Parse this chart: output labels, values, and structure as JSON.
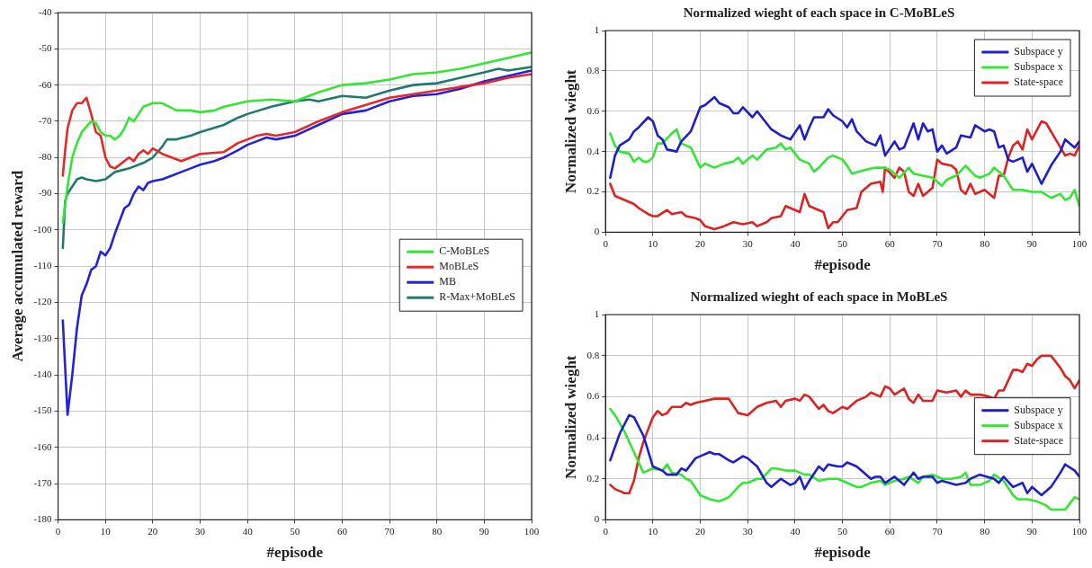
{
  "chart_data": [
    {
      "type": "line",
      "xlabel": "#episode",
      "ylabel": "Average accumulated reward",
      "xlim": [
        0,
        100
      ],
      "xticks": [
        0,
        10,
        20,
        30,
        40,
        50,
        60,
        70,
        80,
        90,
        100
      ],
      "ylim": [
        -180,
        -40
      ],
      "yticks": [
        -180,
        -170,
        -160,
        -150,
        -140,
        -130,
        -120,
        -110,
        -100,
        -90,
        -80,
        -70,
        -60,
        -50,
        -40
      ],
      "grid": true,
      "legend": "right",
      "line_style": "solid",
      "marker": "none",
      "series": [
        {
          "name": "C-MoBLeS",
          "color": "#33e633",
          "x": [
            1,
            2,
            3,
            4,
            5,
            7,
            8,
            9,
            10,
            11,
            12,
            13,
            14,
            15,
            16,
            17,
            18,
            20,
            22,
            25,
            28,
            30,
            33,
            35,
            40,
            45,
            50,
            55,
            60,
            65,
            70,
            75,
            80,
            85,
            90,
            95,
            100
          ],
          "values": [
            -98,
            -88,
            -80,
            -76,
            -73,
            -70,
            -70.5,
            -73,
            -74,
            -74,
            -75,
            -74,
            -72,
            -69,
            -70,
            -68,
            -66,
            -65,
            -65,
            -67,
            -67,
            -67.5,
            -67,
            -66,
            -64.5,
            -64,
            -64.5,
            -62,
            -60,
            -59.5,
            -58.5,
            -57,
            -56.5,
            -55.5,
            -54,
            -52.5,
            -51
          ]
        },
        {
          "name": "MoBLeS",
          "color": "#e62828",
          "x": [
            1,
            1.5,
            2,
            3,
            4,
            5,
            6,
            7,
            8,
            9,
            10,
            11,
            12,
            14,
            15,
            16,
            17,
            18,
            19,
            20,
            22,
            24,
            26,
            28,
            30,
            35,
            38,
            40,
            42,
            44,
            46,
            50,
            55,
            60,
            65,
            70,
            75,
            80,
            85,
            90,
            95,
            100
          ],
          "values": [
            -85,
            -78,
            -72,
            -67,
            -65,
            -65,
            -63.5,
            -68,
            -73,
            -74,
            -80,
            -82.5,
            -83,
            -81,
            -80,
            -81,
            -79,
            -78,
            -79,
            -77.5,
            -79,
            -80,
            -81,
            -80,
            -79,
            -78.5,
            -76,
            -75,
            -74,
            -73.5,
            -74,
            -73,
            -70,
            -67.5,
            -65.5,
            -63.5,
            -62.5,
            -61.5,
            -60.5,
            -59.5,
            -58,
            -57
          ]
        },
        {
          "name": "MB",
          "color": "#2222dd",
          "x": [
            1,
            2,
            3,
            4,
            5,
            6,
            7,
            8,
            9,
            10,
            11,
            12,
            14,
            15,
            16,
            17,
            18,
            19,
            20,
            22,
            24,
            26,
            28,
            30,
            33,
            35,
            38,
            40,
            42,
            44,
            46,
            50,
            55,
            60,
            65,
            70,
            75,
            80,
            85,
            90,
            95,
            100
          ],
          "values": [
            -125,
            -151,
            -140,
            -127,
            -118,
            -115,
            -111,
            -110,
            -106,
            -107,
            -105,
            -101,
            -94,
            -93,
            -90,
            -88,
            -89,
            -87,
            -86.5,
            -86,
            -85,
            -84,
            -83,
            -82,
            -81,
            -80,
            -78,
            -76.5,
            -75.5,
            -74.5,
            -75,
            -74,
            -71,
            -68,
            -67,
            -64.5,
            -63,
            -62.5,
            -61,
            -59,
            -57.5,
            -56
          ]
        },
        {
          "name": "R-Max+MoBLeS",
          "color": "#1e7a6e",
          "x": [
            1,
            1.5,
            2,
            3,
            4,
            5,
            6,
            8,
            10,
            12,
            15,
            18,
            20,
            22,
            23,
            25,
            28,
            30,
            35,
            38,
            40,
            45,
            50,
            53,
            55,
            60,
            65,
            70,
            75,
            80,
            85,
            90,
            93,
            95,
            100
          ],
          "values": [
            -105,
            -92,
            -90,
            -88,
            -86,
            -85.5,
            -86,
            -86.5,
            -86,
            -84,
            -83,
            -81.5,
            -80,
            -77,
            -75,
            -75,
            -74,
            -73,
            -71,
            -69,
            -68,
            -66,
            -64.5,
            -64,
            -64.5,
            -63,
            -63.5,
            -61.5,
            -60,
            -59.5,
            -58,
            -56.5,
            -55.5,
            -56,
            -55
          ]
        }
      ]
    },
    {
      "type": "line",
      "title": "Normalized wieght of each space in C-MoBLeS",
      "xlabel": "#episode",
      "ylabel": "Normalized wieght",
      "xlim": [
        0,
        100
      ],
      "xticks": [
        0,
        10,
        20,
        30,
        40,
        50,
        60,
        70,
        80,
        90,
        100
      ],
      "ylim": [
        0,
        1
      ],
      "yticks": [
        0,
        0.2,
        0.4,
        0.6,
        0.8,
        1
      ],
      "grid": true,
      "legend": "top right",
      "line_style": "solid",
      "marker": "none",
      "series": [
        {
          "name": "Subspace y",
          "color": "#1f1fc8",
          "x": [
            1,
            2,
            3,
            5,
            6,
            7,
            9,
            10,
            11,
            12,
            13,
            15,
            16,
            18,
            20,
            21,
            23,
            24,
            26,
            27,
            28,
            29,
            31,
            32,
            35,
            37,
            39,
            41,
            42,
            43,
            44,
            46,
            47,
            48,
            50,
            51,
            52,
            53,
            55,
            57,
            58,
            59,
            61,
            62,
            63,
            65,
            66,
            67,
            68,
            69,
            70,
            71,
            72,
            74,
            75,
            77,
            78,
            80,
            81,
            82,
            83,
            84,
            85,
            86,
            88,
            89,
            90,
            92,
            94,
            96,
            97,
            98,
            99,
            100
          ],
          "values": [
            0.27,
            0.38,
            0.43,
            0.46,
            0.5,
            0.52,
            0.57,
            0.55,
            0.48,
            0.46,
            0.41,
            0.4,
            0.45,
            0.5,
            0.62,
            0.63,
            0.67,
            0.64,
            0.62,
            0.59,
            0.59,
            0.62,
            0.57,
            0.6,
            0.51,
            0.48,
            0.46,
            0.53,
            0.46,
            0.52,
            0.57,
            0.57,
            0.61,
            0.58,
            0.55,
            0.52,
            0.56,
            0.5,
            0.45,
            0.43,
            0.48,
            0.38,
            0.45,
            0.41,
            0.42,
            0.54,
            0.46,
            0.54,
            0.5,
            0.51,
            0.4,
            0.43,
            0.39,
            0.42,
            0.48,
            0.47,
            0.53,
            0.5,
            0.51,
            0.5,
            0.42,
            0.43,
            0.36,
            0.35,
            0.37,
            0.3,
            0.34,
            0.24,
            0.33,
            0.4,
            0.46,
            0.44,
            0.42,
            0.45
          ]
        },
        {
          "name": "Subspace x",
          "color": "#33e633",
          "x": [
            1,
            2,
            3,
            5,
            6,
            7,
            8,
            9,
            10,
            11,
            12,
            14,
            15,
            16,
            18,
            20,
            21,
            23,
            25,
            27,
            28,
            29,
            31,
            32,
            34,
            36,
            37,
            38,
            39,
            41,
            43,
            44,
            45,
            47,
            48,
            50,
            51,
            52,
            55,
            57,
            59,
            60,
            62,
            64,
            65,
            67,
            69,
            71,
            72,
            74,
            76,
            78,
            79,
            81,
            82,
            84,
            86,
            88,
            90,
            92,
            94,
            96,
            97,
            98,
            99,
            100
          ],
          "values": [
            0.49,
            0.43,
            0.4,
            0.39,
            0.35,
            0.37,
            0.35,
            0.35,
            0.37,
            0.44,
            0.44,
            0.49,
            0.51,
            0.44,
            0.42,
            0.32,
            0.34,
            0.32,
            0.34,
            0.35,
            0.37,
            0.34,
            0.38,
            0.36,
            0.41,
            0.42,
            0.44,
            0.41,
            0.42,
            0.36,
            0.34,
            0.3,
            0.32,
            0.37,
            0.38,
            0.36,
            0.33,
            0.29,
            0.31,
            0.32,
            0.32,
            0.31,
            0.27,
            0.32,
            0.29,
            0.28,
            0.27,
            0.23,
            0.26,
            0.28,
            0.33,
            0.28,
            0.27,
            0.29,
            0.32,
            0.28,
            0.21,
            0.21,
            0.2,
            0.2,
            0.17,
            0.19,
            0.16,
            0.17,
            0.21,
            0.13
          ]
        },
        {
          "name": "State-space",
          "color": "#dd2222",
          "x": [
            1,
            2,
            4,
            6,
            7,
            9,
            10,
            11,
            13,
            14,
            16,
            17,
            19,
            20,
            21,
            23,
            25,
            27,
            29,
            31,
            32,
            34,
            35,
            37,
            38,
            40,
            41,
            42,
            43,
            45,
            46,
            47,
            48,
            49,
            51,
            53,
            54,
            56,
            58,
            58.5,
            59,
            61,
            62,
            63,
            64,
            65,
            66,
            67,
            69,
            70,
            71,
            73,
            74,
            75,
            76,
            77,
            78,
            80,
            82,
            83,
            84,
            85,
            86,
            87,
            88,
            89,
            90,
            92,
            93,
            95,
            97,
            98,
            99,
            100
          ],
          "values": [
            0.24,
            0.18,
            0.16,
            0.14,
            0.12,
            0.09,
            0.08,
            0.08,
            0.11,
            0.09,
            0.1,
            0.08,
            0.07,
            0.06,
            0.03,
            0.015,
            0.03,
            0.05,
            0.04,
            0.05,
            0.03,
            0.05,
            0.07,
            0.08,
            0.13,
            0.11,
            0.1,
            0.19,
            0.13,
            0.11,
            0.1,
            0.02,
            0.05,
            0.05,
            0.11,
            0.12,
            0.2,
            0.24,
            0.25,
            0.2,
            0.32,
            0.27,
            0.32,
            0.3,
            0.2,
            0.18,
            0.24,
            0.18,
            0.22,
            0.36,
            0.34,
            0.33,
            0.31,
            0.21,
            0.19,
            0.24,
            0.19,
            0.21,
            0.17,
            0.28,
            0.28,
            0.37,
            0.43,
            0.45,
            0.41,
            0.51,
            0.46,
            0.55,
            0.54,
            0.46,
            0.38,
            0.39,
            0.38,
            0.43
          ]
        }
      ]
    },
    {
      "type": "line",
      "title": "Normalized wieght of each space in MoBLeS",
      "xlabel": "#episode",
      "ylabel": "Normalized wieght",
      "xlim": [
        0,
        100
      ],
      "xticks": [
        0,
        10,
        20,
        30,
        40,
        50,
        60,
        70,
        80,
        90,
        100
      ],
      "ylim": [
        0,
        1
      ],
      "yticks": [
        0,
        0.2,
        0.4,
        0.6,
        0.8,
        1
      ],
      "grid": true,
      "legend": "right",
      "line_style": "solid",
      "marker": "none",
      "series": [
        {
          "name": "Subspace y",
          "color": "#1f1fc8",
          "x": [
            1,
            3,
            5,
            6,
            8,
            10,
            12,
            13,
            15,
            16,
            17,
            19,
            20,
            22,
            23,
            24,
            26,
            27,
            29,
            30,
            32,
            34,
            35,
            37,
            39,
            40,
            41,
            42,
            43,
            45,
            46,
            47,
            49,
            50,
            51,
            53,
            54,
            56,
            57,
            58,
            59,
            61,
            63,
            64,
            65,
            66,
            67,
            69,
            70,
            71,
            74,
            76,
            77,
            79,
            82,
            83,
            84,
            86,
            88,
            89,
            90,
            92,
            94,
            96,
            97,
            99,
            100
          ],
          "values": [
            0.29,
            0.42,
            0.51,
            0.5,
            0.41,
            0.26,
            0.24,
            0.22,
            0.22,
            0.25,
            0.24,
            0.3,
            0.31,
            0.33,
            0.32,
            0.32,
            0.29,
            0.28,
            0.31,
            0.3,
            0.26,
            0.18,
            0.16,
            0.2,
            0.17,
            0.18,
            0.21,
            0.15,
            0.19,
            0.26,
            0.24,
            0.27,
            0.26,
            0.26,
            0.28,
            0.26,
            0.24,
            0.2,
            0.21,
            0.21,
            0.18,
            0.21,
            0.17,
            0.2,
            0.23,
            0.2,
            0.21,
            0.21,
            0.18,
            0.19,
            0.17,
            0.18,
            0.2,
            0.22,
            0.2,
            0.18,
            0.21,
            0.16,
            0.18,
            0.13,
            0.16,
            0.12,
            0.16,
            0.23,
            0.27,
            0.24,
            0.21
          ]
        },
        {
          "name": "Subspace x",
          "color": "#33e633",
          "x": [
            1,
            2,
            4,
            6,
            8,
            10,
            12,
            13,
            14,
            16,
            17,
            18,
            20,
            22,
            24,
            26,
            28,
            29,
            30,
            32,
            33,
            35,
            36,
            38,
            40,
            42,
            43,
            45,
            47,
            49,
            51,
            53,
            54,
            56,
            58,
            59,
            61,
            63,
            64,
            66,
            67,
            69,
            71,
            73,
            75,
            76,
            77,
            79,
            81,
            82,
            84,
            86,
            87,
            89,
            91,
            93,
            94,
            96,
            97,
            98,
            99,
            100
          ],
          "values": [
            0.54,
            0.51,
            0.43,
            0.33,
            0.23,
            0.25,
            0.24,
            0.27,
            0.23,
            0.22,
            0.2,
            0.19,
            0.12,
            0.1,
            0.09,
            0.11,
            0.16,
            0.18,
            0.18,
            0.2,
            0.2,
            0.25,
            0.25,
            0.24,
            0.24,
            0.22,
            0.22,
            0.19,
            0.2,
            0.2,
            0.18,
            0.16,
            0.16,
            0.18,
            0.19,
            0.17,
            0.19,
            0.2,
            0.21,
            0.18,
            0.21,
            0.22,
            0.2,
            0.2,
            0.21,
            0.23,
            0.17,
            0.17,
            0.19,
            0.22,
            0.19,
            0.12,
            0.1,
            0.1,
            0.09,
            0.07,
            0.05,
            0.05,
            0.05,
            0.08,
            0.11,
            0.1
          ]
        },
        {
          "name": "State-space",
          "color": "#dd2222",
          "x": [
            1,
            2,
            3,
            4,
            5,
            6,
            7,
            8,
            9,
            10,
            11,
            12,
            13,
            14,
            16,
            17,
            18,
            19,
            21,
            23,
            24,
            26,
            28,
            30,
            32,
            34,
            36,
            37,
            38,
            40,
            41,
            42,
            43,
            45,
            46,
            47,
            48,
            50,
            51,
            53,
            55,
            56,
            58,
            59,
            60,
            61,
            63,
            64,
            65,
            66,
            67,
            69,
            70,
            72,
            74,
            75,
            76,
            77,
            79,
            81,
            82,
            83,
            84,
            85,
            86,
            87,
            88,
            89,
            90,
            91,
            92,
            94,
            96,
            97,
            98,
            99,
            100
          ],
          "values": [
            0.17,
            0.15,
            0.14,
            0.13,
            0.13,
            0.19,
            0.3,
            0.38,
            0.44,
            0.5,
            0.53,
            0.51,
            0.52,
            0.55,
            0.55,
            0.57,
            0.56,
            0.57,
            0.58,
            0.59,
            0.59,
            0.59,
            0.52,
            0.51,
            0.55,
            0.57,
            0.58,
            0.55,
            0.58,
            0.59,
            0.58,
            0.61,
            0.6,
            0.54,
            0.56,
            0.53,
            0.52,
            0.55,
            0.54,
            0.58,
            0.6,
            0.62,
            0.6,
            0.65,
            0.64,
            0.61,
            0.64,
            0.59,
            0.57,
            0.61,
            0.58,
            0.58,
            0.63,
            0.62,
            0.63,
            0.6,
            0.63,
            0.61,
            0.61,
            0.6,
            0.59,
            0.63,
            0.63,
            0.68,
            0.73,
            0.73,
            0.72,
            0.76,
            0.75,
            0.78,
            0.8,
            0.8,
            0.74,
            0.7,
            0.68,
            0.64,
            0.68
          ]
        }
      ]
    }
  ]
}
